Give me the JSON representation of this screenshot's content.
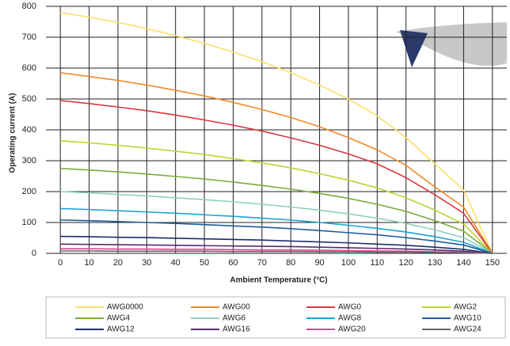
{
  "chart_data": {
    "type": "line",
    "xlabel": "Ambient Temperature (°C)",
    "ylabel": "Operating current (A)",
    "x": [
      0,
      10,
      20,
      30,
      40,
      50,
      60,
      70,
      80,
      90,
      100,
      110,
      120,
      130,
      140,
      150
    ],
    "xlim": [
      -5,
      155
    ],
    "xticks": [
      0,
      10,
      20,
      30,
      40,
      50,
      60,
      70,
      80,
      90,
      100,
      110,
      120,
      130,
      140,
      150
    ],
    "ylim": [
      0,
      800
    ],
    "yticks": [
      0,
      100,
      200,
      300,
      400,
      500,
      600,
      700,
      800
    ],
    "grid": true,
    "series": [
      {
        "name": "AWG0000",
        "color": "#fde06a",
        "values": [
          780,
          765,
          748,
          728,
          705,
          680,
          652,
          621,
          585,
          545,
          500,
          445,
          375,
          290,
          205,
          0
        ]
      },
      {
        "name": "AWG00",
        "color": "#f08a24",
        "values": [
          585,
          573,
          560,
          545,
          528,
          510,
          489,
          466,
          440,
          410,
          375,
          335,
          285,
          215,
          150,
          0
        ]
      },
      {
        "name": "AWG0",
        "color": "#d9383f",
        "values": [
          495,
          485,
          474,
          462,
          448,
          432,
          415,
          396,
          374,
          350,
          322,
          290,
          245,
          190,
          130,
          0
        ]
      },
      {
        "name": "AWG2",
        "color": "#c2d12e",
        "values": [
          365,
          358,
          350,
          341,
          331,
          320,
          307,
          293,
          277,
          258,
          237,
          212,
          180,
          140,
          95,
          0
        ]
      },
      {
        "name": "AWG4",
        "color": "#7bab3a",
        "values": [
          275,
          270,
          264,
          257,
          249,
          241,
          231,
          220,
          208,
          194,
          178,
          159,
          136,
          106,
          72,
          0
        ]
      },
      {
        "name": "AWG6",
        "color": "#8ecfc0",
        "values": [
          200,
          196,
          191,
          186,
          180,
          174,
          167,
          159,
          150,
          140,
          128,
          114,
          97,
          76,
          51,
          0
        ]
      },
      {
        "name": "AWG8",
        "color": "#1aa3d4",
        "values": [
          145,
          142,
          138,
          134,
          130,
          125,
          120,
          114,
          108,
          100,
          91,
          81,
          69,
          54,
          36,
          0
        ]
      },
      {
        "name": "AWG10",
        "color": "#1b5e9a",
        "values": [
          108,
          106,
          103,
          100,
          97,
          93,
          89,
          85,
          80,
          74,
          67,
          60,
          51,
          40,
          27,
          0
        ]
      },
      {
        "name": "AWG12",
        "color": "#1c2f6b",
        "values": [
          55,
          54,
          52,
          51,
          49,
          47,
          45,
          43,
          40,
          37,
          34,
          30,
          26,
          20,
          13,
          0
        ]
      },
      {
        "name": "AWG16",
        "color": "#5a2a6e",
        "values": [
          30,
          29,
          28,
          27,
          26,
          25,
          24,
          23,
          22,
          20,
          18,
          16,
          14,
          11,
          7,
          0
        ]
      },
      {
        "name": "AWG20",
        "color": "#e0428f",
        "values": [
          15,
          15,
          14,
          14,
          13,
          13,
          12,
          11,
          11,
          10,
          9,
          8,
          7,
          5,
          3,
          0
        ]
      },
      {
        "name": "AWG24",
        "color": "#666666",
        "values": [
          8,
          8,
          7,
          7,
          7,
          7,
          6,
          6,
          6,
          5,
          5,
          4,
          4,
          3,
          2,
          0
        ]
      }
    ]
  }
}
